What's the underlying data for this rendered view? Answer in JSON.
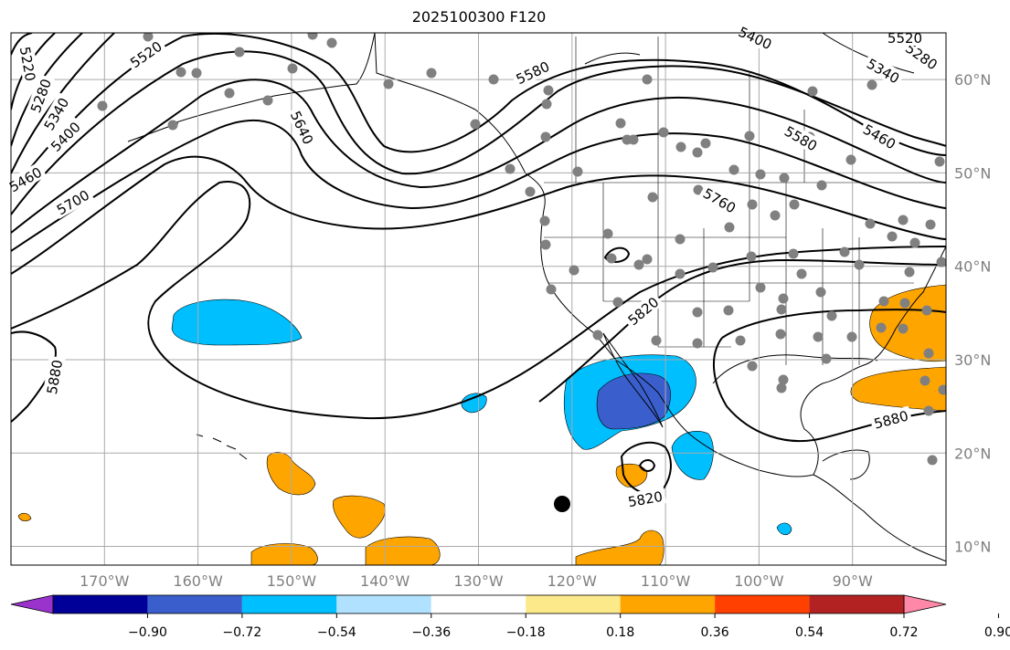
{
  "title": "2025100300 F120",
  "map": {
    "projection": "plate-carree",
    "lon_range": [
      -180,
      -80
    ],
    "lat_range": [
      8,
      65
    ],
    "grid_lon": [
      -170,
      -160,
      -150,
      -140,
      -130,
      -120,
      -110,
      -100,
      -90
    ],
    "grid_lat": [
      10,
      20,
      30,
      40,
      50,
      60
    ],
    "lon_labels": [
      "170°W",
      "160°W",
      "150°W",
      "140°W",
      "130°W",
      "120°W",
      "110°W",
      "100°W",
      "90°W"
    ],
    "lat_labels": [
      "10°N",
      "20°N",
      "30°N",
      "40°N",
      "50°N",
      "60°N"
    ],
    "label_color": "#808080",
    "grid_color": "#aaaaaa"
  },
  "contour_labels": [
    "5220",
    "5280",
    "5340",
    "5400",
    "5460",
    "5520",
    "5640",
    "5700",
    "5580",
    "5760",
    "5820",
    "5880",
    "5820",
    "5880",
    "5400",
    "5340",
    "5280",
    "5460",
    "5580",
    "5520"
  ],
  "colorbar": {
    "ticks": [
      "−0.90",
      "−0.72",
      "−0.54",
      "−0.36",
      "−0.18",
      "0.18",
      "0.36",
      "0.54",
      "0.72",
      "0.90"
    ],
    "colors": [
      "#9933cc",
      "#000099",
      "#3a5fcd",
      "#00bfff",
      "#b0e2ff",
      "#ffffff",
      "#fce98a",
      "#ffa500",
      "#ff4000",
      "#b22222",
      "#ff88a8"
    ]
  },
  "legend_colors": {
    "negative_mid": "#00bfff",
    "negative_strong": "#3a5fcd",
    "positive_mid": "#ffa500",
    "dot_color": "#808080",
    "dot_marker": "#000000"
  }
}
